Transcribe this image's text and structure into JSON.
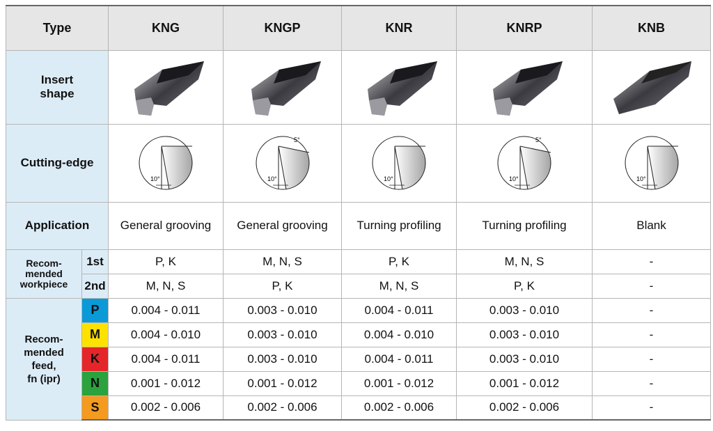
{
  "table": {
    "header": {
      "type": "Type",
      "columns": [
        "KNG",
        "KNGP",
        "KNR",
        "KNRP",
        "KNB"
      ]
    },
    "insert_shape": {
      "label": "Insert shape"
    },
    "cutting_edge": {
      "label": "Cutting-edge",
      "diagrams": [
        {
          "angles": [
            "10°"
          ]
        },
        {
          "angles": [
            "10°",
            "5°"
          ]
        },
        {
          "angles": [
            "10°"
          ]
        },
        {
          "angles": [
            "10°",
            "5°"
          ]
        },
        {
          "angles": [
            "10°"
          ]
        }
      ]
    },
    "application": {
      "label": "Application",
      "values": [
        "General grooving",
        "General grooving",
        "Turning profiling",
        "Turning profiling",
        "Blank"
      ]
    },
    "workpiece": {
      "label": [
        "Recom-",
        "mended",
        "workpiece"
      ],
      "rows": [
        {
          "grade": "1st",
          "values": [
            "P, K",
            "M, N, S",
            "P, K",
            "M, N, S",
            "-"
          ]
        },
        {
          "grade": "2nd",
          "values": [
            "M, N, S",
            "P, K",
            "M, N, S",
            "P, K",
            "-"
          ]
        }
      ]
    },
    "feed": {
      "label": [
        "Recom-",
        "mended",
        "feed,",
        "fn (ipr)"
      ],
      "rows": [
        {
          "iso": "P",
          "color": "#0a9ad8",
          "values": [
            "0.004 - 0.011",
            "0.003 - 0.010",
            "0.004 - 0.011",
            "0.003 - 0.010",
            "-"
          ]
        },
        {
          "iso": "M",
          "color": "#ffe100",
          "values": [
            "0.004 - 0.010",
            "0.003 - 0.010",
            "0.004 - 0.010",
            "0.003 - 0.010",
            "-"
          ]
        },
        {
          "iso": "K",
          "color": "#e4262a",
          "values": [
            "0.004 - 0.011",
            "0.003 - 0.010",
            "0.004 - 0.011",
            "0.003 - 0.010",
            "-"
          ]
        },
        {
          "iso": "N",
          "color": "#2aa23d",
          "values": [
            "0.001 - 0.012",
            "0.001 - 0.012",
            "0.001 - 0.012",
            "0.001 - 0.012",
            "-"
          ]
        },
        {
          "iso": "S",
          "color": "#f49a1e",
          "values": [
            "0.002 - 0.006",
            "0.002 - 0.006",
            "0.002 - 0.006",
            "0.002 - 0.006",
            "-"
          ]
        }
      ]
    }
  }
}
